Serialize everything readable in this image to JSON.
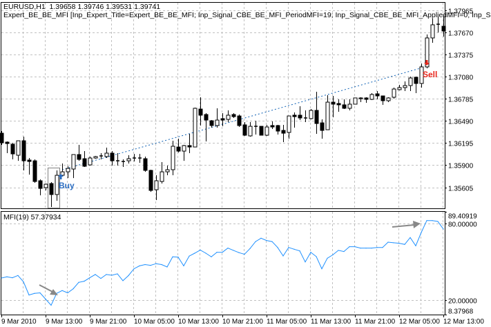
{
  "header": {
    "symbol_line": "EURUSD,H1  1.39658 1.39746 1.39531 1.39741",
    "expert_line": "Expert_BE_BE_MFI [Inp_Expert_Title=Expert_BE_BE_MFI; Inp_Signal_CBE_BE_MFI_PeriodMFI=19; Inp_Signal_CBE_BE_MFI_AppliedMFI=0; Inp_S"
  },
  "indicator_label": "MFI(19) 57.37934",
  "colors": {
    "grid": "#c0c0c0",
    "candle_bull": "#ffffff",
    "candle_bear": "#000000",
    "trade_line": "#0b5fb4",
    "buy": "#2a6cc0",
    "sell": "#e8281e",
    "mfi_line": "#1e90ff",
    "annotation_arrow": "#888888"
  },
  "x_tick_labels": [
    "9 Mar 2010",
    "9 Mar 13:00",
    "9 Mar 21:00",
    "10 Mar 05:00",
    "10 Mar 13:00",
    "10 Mar 21:00",
    "11 Mar 05:00",
    "11 Mar 13:00",
    "11 Mar 21:00",
    "12 Mar 05:00",
    "12 Mar 13:00"
  ],
  "chart_data": [
    {
      "type": "candlestick",
      "symbol": "EURUSD",
      "timeframe": "H1",
      "ylim": [
        1.35325,
        1.38066
      ],
      "y_tick_labels": [
        "1.37965",
        "1.37670",
        "1.37375",
        "1.37080",
        "1.36785",
        "1.36490",
        "1.36195",
        "1.35900",
        "1.35605"
      ],
      "grid": true,
      "ohlc": [
        [
          1.36327,
          1.36355,
          1.36171,
          1.36199
        ],
        [
          1.36208,
          1.36217,
          1.36061,
          1.36189
        ],
        [
          1.3618,
          1.36199,
          1.35978,
          1.36051
        ],
        [
          1.36033,
          1.36226,
          1.35959,
          1.36226
        ],
        [
          1.36226,
          1.36281,
          1.35831,
          1.35959
        ],
        [
          1.35969,
          1.35996,
          1.35775,
          1.3595
        ],
        [
          1.35959,
          1.35978,
          1.35665,
          1.35683
        ],
        [
          1.35693,
          1.35711,
          1.35499,
          1.35591
        ],
        [
          1.35601,
          1.35656,
          1.35564,
          1.35647
        ],
        [
          1.35656,
          1.35674,
          1.35343,
          1.35509
        ],
        [
          1.35509,
          1.35831,
          1.35426,
          1.35766
        ],
        [
          1.35766,
          1.35923,
          1.35748,
          1.35812
        ],
        [
          1.35812,
          1.35886,
          1.35729,
          1.35858
        ],
        [
          1.35849,
          1.36042,
          1.35729,
          1.36042
        ],
        [
          1.36042,
          1.36171,
          1.35959,
          1.35978
        ],
        [
          1.35987,
          1.36088,
          1.35877,
          1.35886
        ],
        [
          1.35904,
          1.36015,
          1.35895,
          1.35996
        ],
        [
          1.35996,
          1.36024,
          1.35987,
          1.36015
        ],
        [
          1.36015,
          1.36061,
          1.35978,
          1.36024
        ],
        [
          1.36015,
          1.36134,
          1.35996,
          1.36061
        ],
        [
          1.36061,
          1.36088,
          1.35895,
          1.35959
        ],
        [
          1.35959,
          1.36061,
          1.35895,
          1.3595
        ],
        [
          1.3595,
          1.35978,
          1.35877,
          1.35941
        ],
        [
          1.35959,
          1.36033,
          1.35923,
          1.35987
        ],
        [
          1.35987,
          1.36051,
          1.3595,
          1.35996
        ],
        [
          1.35996,
          1.36051,
          1.35932,
          1.35987
        ],
        [
          1.35987,
          1.36015,
          1.35812,
          1.35831
        ],
        [
          1.35831,
          1.3584,
          1.35545,
          1.35564
        ],
        [
          1.35573,
          1.35766,
          1.35435,
          1.35693
        ],
        [
          1.35683,
          1.35941,
          1.35656,
          1.35812
        ],
        [
          1.35812,
          1.35895,
          1.35766,
          1.3584
        ],
        [
          1.3584,
          1.36226,
          1.35766,
          1.36153
        ],
        [
          1.36143,
          1.36254,
          1.3607,
          1.36088
        ],
        [
          1.36088,
          1.36171,
          1.35959,
          1.36162
        ],
        [
          1.36162,
          1.36318,
          1.36061,
          1.36143
        ],
        [
          1.36143,
          1.36668,
          1.36143,
          1.36659
        ],
        [
          1.36649,
          1.36806,
          1.36429,
          1.36567
        ],
        [
          1.36576,
          1.36594,
          1.36217,
          1.36502
        ],
        [
          1.36493,
          1.36502,
          1.36401,
          1.36429
        ],
        [
          1.36429,
          1.36659,
          1.36401,
          1.36502
        ],
        [
          1.36521,
          1.36594,
          1.36419,
          1.36502
        ],
        [
          1.36511,
          1.36631,
          1.36475,
          1.36567
        ],
        [
          1.36576,
          1.36594,
          1.3653,
          1.36548
        ],
        [
          1.36557,
          1.36576,
          1.3641,
          1.36429
        ],
        [
          1.36438,
          1.36475,
          1.36291,
          1.363
        ],
        [
          1.36291,
          1.36475,
          1.36281,
          1.36419
        ],
        [
          1.3641,
          1.36493,
          1.36309,
          1.36419
        ],
        [
          1.36419,
          1.36419,
          1.363,
          1.363
        ],
        [
          1.363,
          1.36438,
          1.36291,
          1.3641
        ],
        [
          1.36429,
          1.36484,
          1.36383,
          1.3641
        ],
        [
          1.36429,
          1.36438,
          1.36309,
          1.36355
        ],
        [
          1.36364,
          1.36438,
          1.36208,
          1.36327
        ],
        [
          1.36337,
          1.36557,
          1.36254,
          1.36557
        ],
        [
          1.36567,
          1.36603,
          1.36401,
          1.36548
        ],
        [
          1.36567,
          1.36686,
          1.36502,
          1.3653
        ],
        [
          1.3653,
          1.36631,
          1.36475,
          1.3653
        ],
        [
          1.36521,
          1.36649,
          1.36511,
          1.36631
        ],
        [
          1.36631,
          1.36879,
          1.36318,
          1.36456
        ],
        [
          1.36465,
          1.36511,
          1.36254,
          1.36364
        ],
        [
          1.36373,
          1.36833,
          1.36373,
          1.36741
        ],
        [
          1.36741,
          1.36824,
          1.36539,
          1.36714
        ],
        [
          1.36723,
          1.36778,
          1.36613,
          1.36705
        ],
        [
          1.36705,
          1.36778,
          1.36649,
          1.36659
        ],
        [
          1.36659,
          1.36778,
          1.36631,
          1.36714
        ],
        [
          1.36714,
          1.36797,
          1.36714,
          1.36797
        ],
        [
          1.36787,
          1.36806,
          1.36741,
          1.36797
        ],
        [
          1.36797,
          1.36806,
          1.36732,
          1.36778
        ],
        [
          1.36778,
          1.36861,
          1.36769,
          1.36843
        ],
        [
          1.36852,
          1.36889,
          1.36778,
          1.36824
        ],
        [
          1.36824,
          1.36824,
          1.36705,
          1.3676
        ],
        [
          1.3676,
          1.36806,
          1.36741,
          1.36797
        ],
        [
          1.36806,
          1.36935,
          1.36787,
          1.36916
        ],
        [
          1.36907,
          1.36971,
          1.36898,
          1.36935
        ],
        [
          1.36935,
          1.37017,
          1.36889,
          1.36962
        ],
        [
          1.36962,
          1.37082,
          1.36889,
          1.37063
        ],
        [
          1.37073,
          1.37082,
          1.36861,
          1.3699
        ],
        [
          1.3699,
          1.37257,
          1.36935,
          1.37211
        ],
        [
          1.37211,
          1.37643,
          1.37192,
          1.37597
        ],
        [
          1.37597,
          1.37855,
          1.37533,
          1.37772
        ],
        [
          1.37772,
          1.37882,
          1.37671,
          1.3778
        ],
        [
          1.37753,
          1.37882,
          1.37615,
          1.37689
        ]
      ],
      "trade": {
        "buy_label": "Buy",
        "buy_bar": 11,
        "buy_price": 1.3584,
        "sell_label": "Sell",
        "sell_bar": 77,
        "sell_price": 1.3722,
        "highlight_bars": [
          9,
          10
        ]
      }
    },
    {
      "type": "line",
      "name": "MFI(19)",
      "ylim": [
        8.37968,
        89.40919
      ],
      "y_tick_labels": [
        "89.40919",
        "80.00000",
        "20.00000",
        "8.37968"
      ],
      "levels": [
        80,
        20
      ],
      "grid": true,
      "values": [
        37.2,
        38.2,
        37.4,
        39.2,
        34.2,
        23.8,
        25.1,
        25.5,
        20.6,
        15.7,
        25.1,
        27.3,
        25.5,
        28.7,
        33.8,
        34.7,
        37.4,
        40.0,
        36.9,
        40.0,
        39.4,
        40.5,
        35.1,
        39.1,
        44.5,
        46.8,
        47.8,
        47.2,
        48.5,
        47.8,
        45.9,
        53.9,
        53.7,
        46.8,
        54.5,
        56.8,
        59.3,
        56.8,
        53.9,
        57.5,
        57.5,
        60.8,
        59.0,
        57.2,
        55.9,
        60.4,
        65.9,
        68.6,
        66.8,
        65.9,
        61.3,
        54.6,
        61.3,
        59.9,
        58.6,
        49.9,
        57.5,
        54.1,
        44.5,
        52.8,
        55.5,
        59.0,
        58.1,
        61.9,
        61.9,
        60.8,
        60.8,
        60.8,
        61.3,
        61.3,
        65.5,
        65.0,
        64.6,
        63.7,
        69.1,
        62.6,
        73.1,
        82.5,
        82.5,
        81.8,
        75.8
      ]
    }
  ]
}
